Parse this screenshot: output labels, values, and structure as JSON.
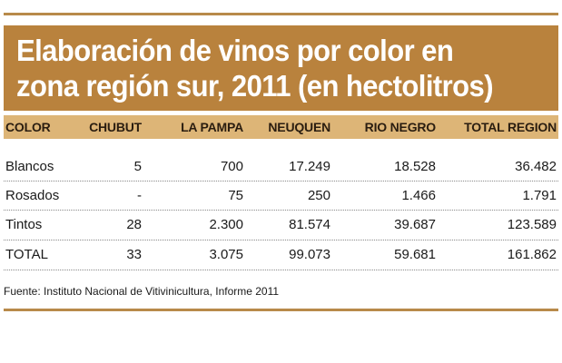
{
  "title": {
    "line1": "Elaboración de vinos por color en",
    "line2": "zona región sur, 2011 (en hectolitros)"
  },
  "colors": {
    "title_bg": "#b9823d",
    "header_bg": "#ddb577",
    "rule": "#b88a4a"
  },
  "chart_data": {
    "type": "table",
    "title": "Elaboración de vinos por color en zona región sur, 2011 (en hectolitros)",
    "columns": [
      "COLOR",
      "CHUBUT",
      "LA PAMPA",
      "NEUQUEN",
      "RIO NEGRO",
      "TOTAL REGION"
    ],
    "rows": [
      [
        "Blancos",
        "5",
        "700",
        "17.249",
        "18.528",
        "36.482"
      ],
      [
        "Rosados",
        "-",
        "75",
        "250",
        "1.466",
        "1.791"
      ],
      [
        "Tintos",
        "28",
        "2.300",
        "81.574",
        "39.687",
        "123.589"
      ],
      [
        "TOTAL",
        "33",
        "3.075",
        "99.073",
        "59.681",
        "161.862"
      ]
    ]
  },
  "source": "Fuente: Instituto Nacional de Vitivinicultura, Informe 2011"
}
